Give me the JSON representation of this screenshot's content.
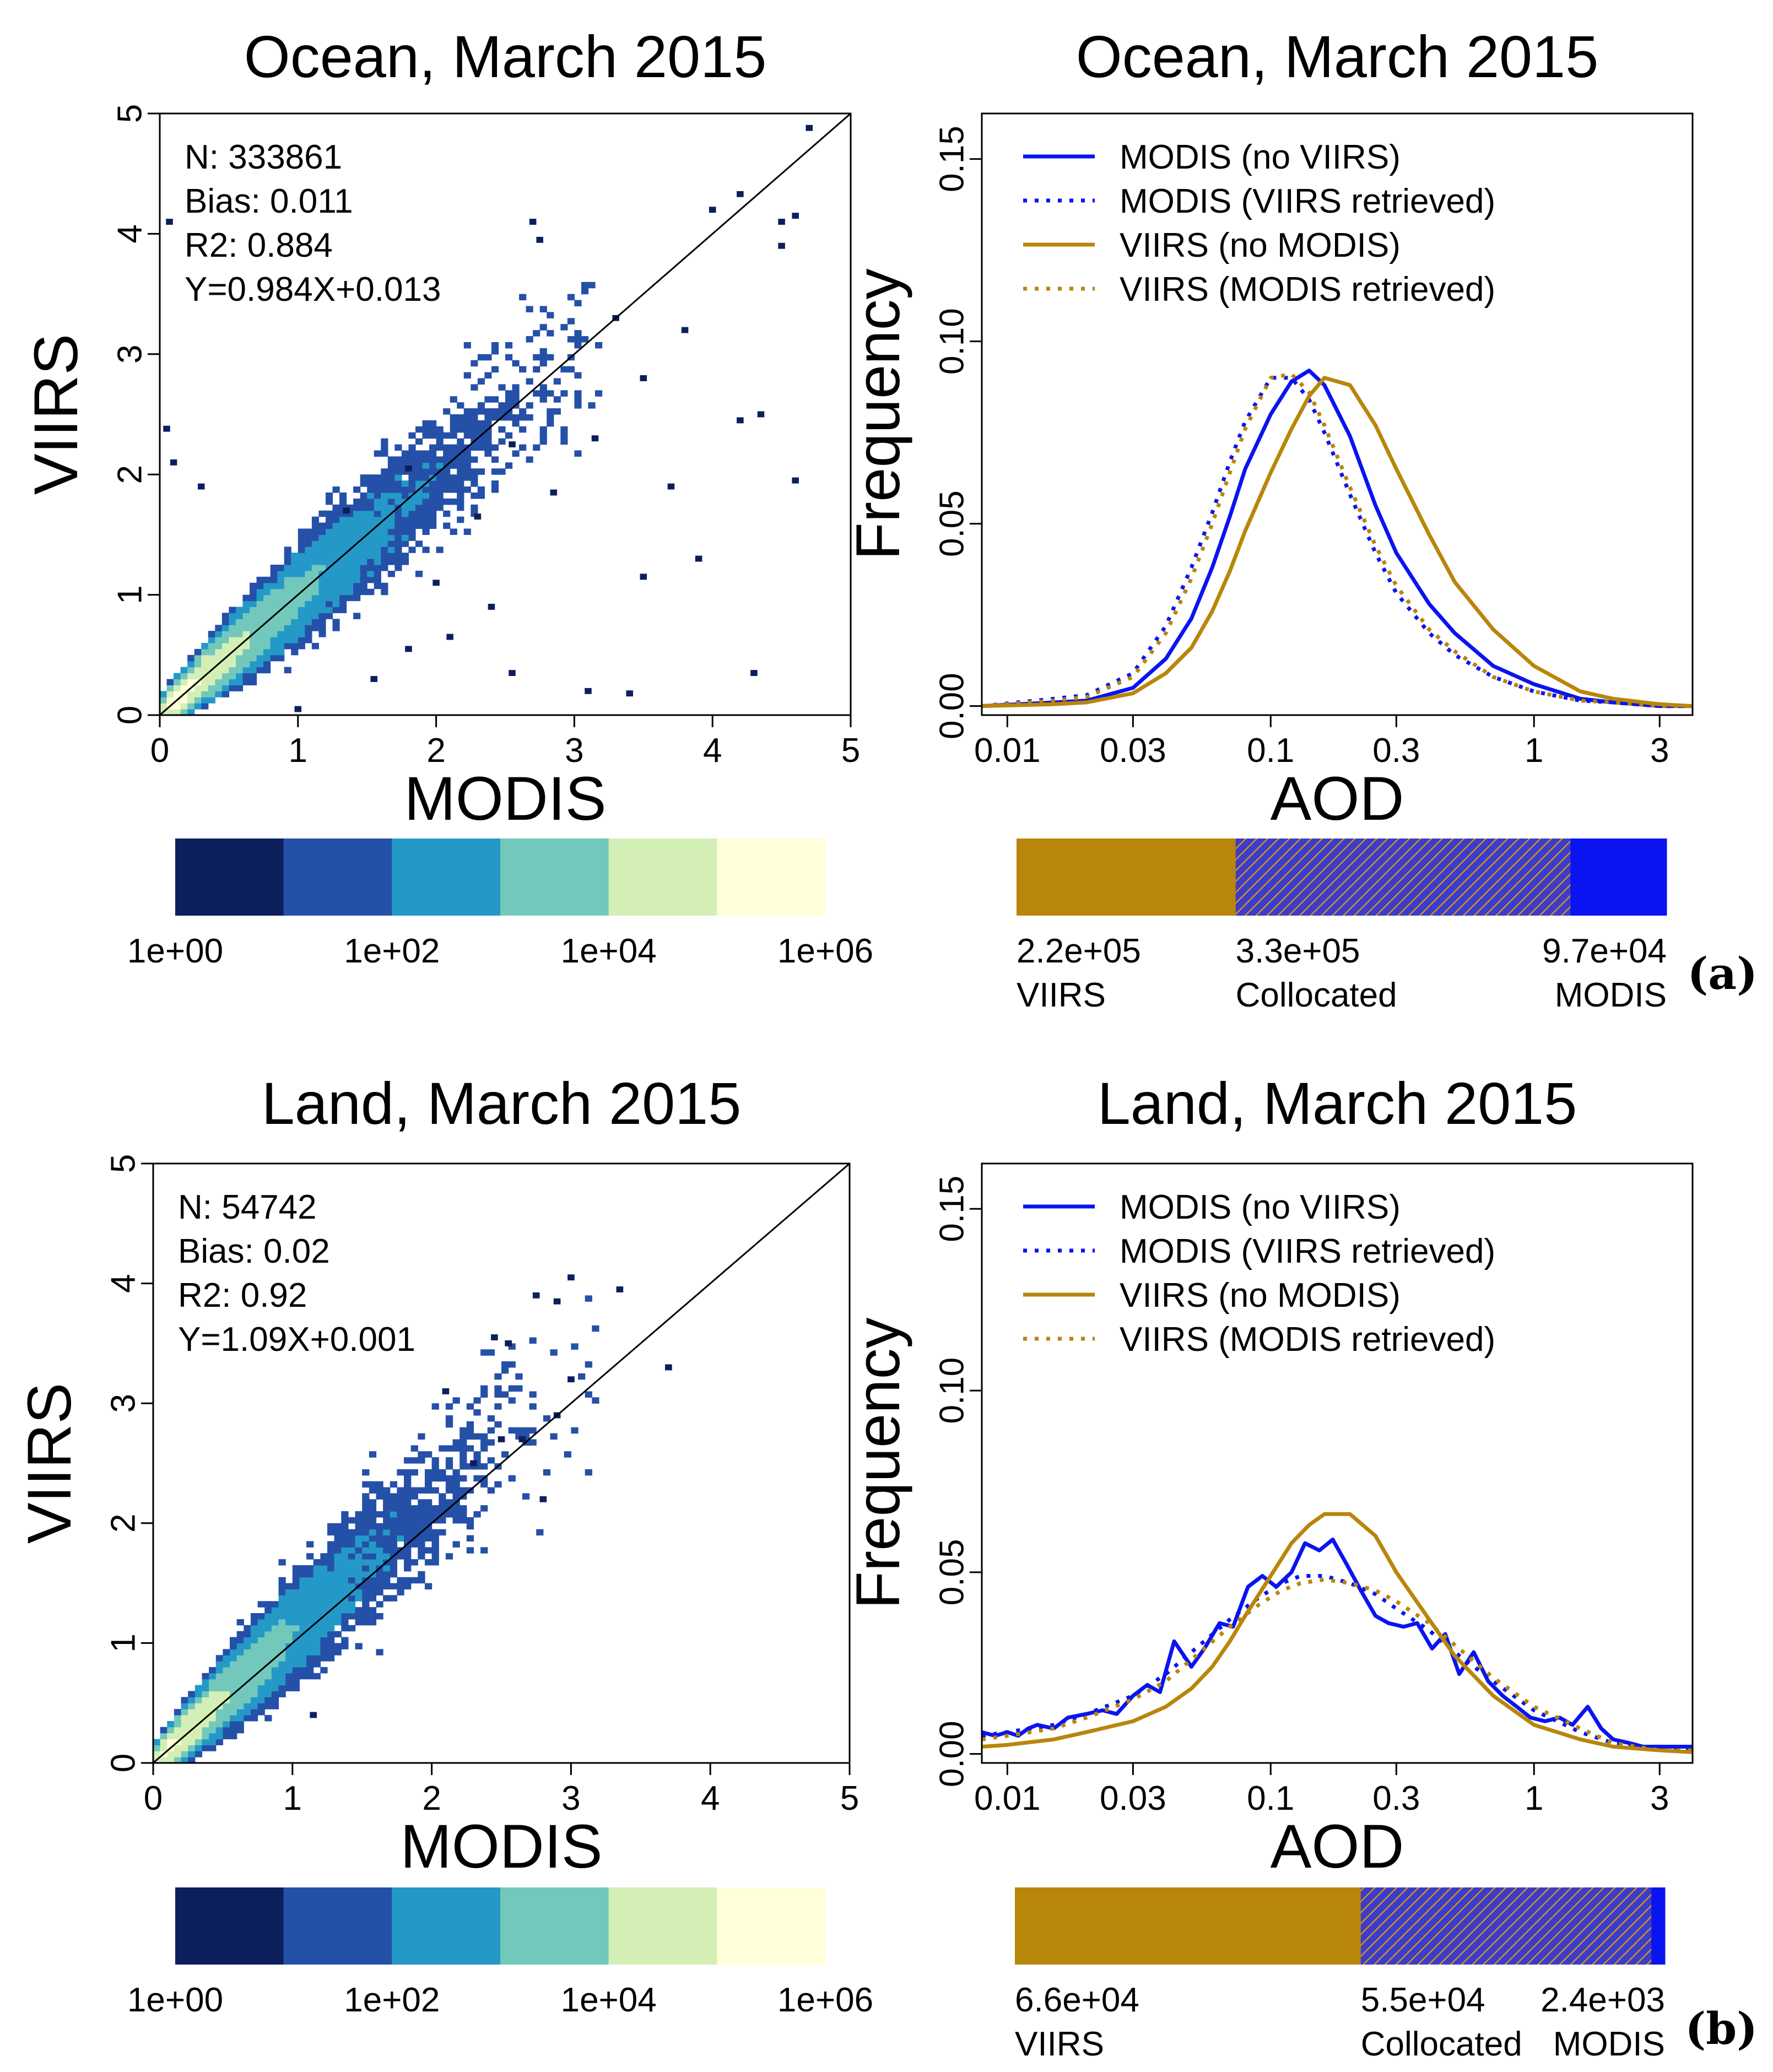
{
  "chart_data": [
    {
      "type": "scatter",
      "panel": "a",
      "title": "Ocean, March 2015",
      "xlabel": "MODIS",
      "ylabel": "VIIRS",
      "xlim": [
        0,
        5
      ],
      "ylim": [
        0,
        5
      ],
      "xticks": [
        "0",
        "1",
        "2",
        "3",
        "4",
        "5"
      ],
      "yticks": [
        "0",
        "1",
        "2",
        "3",
        "4",
        "5"
      ],
      "stats": [
        "N: 333861",
        "Bias: 0.011",
        "R2: 0.884",
        "Y=0.984X+0.013"
      ],
      "fit": {
        "slope": 0.984,
        "intercept": 0.013
      },
      "spread": 0.18,
      "density_scale": {
        "labels": [
          "1e+00",
          "1e+02",
          "1e+04",
          "1e+06"
        ],
        "colors": [
          "#0c1f5c",
          "#2550a8",
          "#2499c8",
          "#73c8bc",
          "#d4efb6",
          "#ffffd9"
        ]
      },
      "outliers": [
        [
          0.05,
          2.38
        ],
        [
          0.1,
          2.1
        ],
        [
          0.07,
          4.1
        ],
        [
          0.3,
          1.9
        ],
        [
          2.7,
          4.1
        ],
        [
          2.75,
          3.95
        ],
        [
          3.3,
          3.3
        ],
        [
          3.5,
          2.8
        ],
        [
          3.7,
          1.9
        ],
        [
          3.5,
          1.15
        ],
        [
          3.4,
          0.18
        ],
        [
          4.2,
          2.45
        ],
        [
          4.3,
          0.35
        ],
        [
          4.5,
          4.1
        ],
        [
          4.6,
          1.95
        ],
        [
          4.5,
          3.9
        ],
        [
          4.7,
          4.88
        ],
        [
          3.8,
          3.2
        ],
        [
          4.2,
          4.33
        ],
        [
          4.0,
          4.2
        ],
        [
          4.35,
          2.5
        ],
        [
          4.6,
          4.15
        ],
        [
          2.1,
          0.65
        ],
        [
          2.3,
          1.65
        ],
        [
          3.9,
          1.3
        ],
        [
          1.55,
          0.3
        ],
        [
          2.55,
          0.35
        ],
        [
          1.0,
          0.05
        ],
        [
          3.1,
          0.2
        ],
        [
          1.8,
          2.05
        ],
        [
          3.15,
          2.3
        ],
        [
          2.85,
          1.85
        ],
        [
          2.55,
          2.25
        ],
        [
          1.35,
          1.7
        ],
        [
          2.0,
          1.1
        ],
        [
          2.4,
          0.9
        ],
        [
          1.8,
          0.55
        ]
      ]
    },
    {
      "type": "line",
      "panel": "a",
      "title": "Ocean, March 2015",
      "xlabel": "AOD",
      "ylabel": "Frequency",
      "x_scale": "log",
      "xlim": [
        0.008,
        4
      ],
      "ylim": [
        0,
        0.16
      ],
      "xticks": [
        "0.01",
        "0.03",
        "0.1",
        "0.3",
        "1",
        "3"
      ],
      "xtick_values": [
        0.01,
        0.03,
        0.1,
        0.3,
        1,
        3
      ],
      "yticks": [
        "0.00",
        "0.05",
        "0.10",
        "0.15"
      ],
      "ytick_values": [
        0,
        0.05,
        0.1,
        0.15
      ],
      "legend_placement": "top-left",
      "series": [
        {
          "name": "MODIS (no VIIRS)",
          "color": "#0a14f0",
          "dash": "solid",
          "x": [
            0.008,
            0.015,
            0.02,
            0.03,
            0.04,
            0.05,
            0.06,
            0.07,
            0.08,
            0.1,
            0.12,
            0.14,
            0.16,
            0.2,
            0.25,
            0.3,
            0.4,
            0.5,
            0.7,
            1,
            1.5,
            2,
            3,
            4
          ],
          "y": [
            0.0,
            0.001,
            0.0015,
            0.005,
            0.013,
            0.024,
            0.038,
            0.052,
            0.065,
            0.08,
            0.089,
            0.092,
            0.088,
            0.074,
            0.055,
            0.042,
            0.028,
            0.02,
            0.011,
            0.006,
            0.002,
            0.001,
            0.0,
            0.0
          ]
        },
        {
          "name": "MODIS (VIIRS retrieved)",
          "color": "#0a14f0",
          "dash": "dotted",
          "x": [
            0.008,
            0.015,
            0.02,
            0.03,
            0.04,
            0.05,
            0.06,
            0.07,
            0.08,
            0.1,
            0.12,
            0.14,
            0.16,
            0.2,
            0.25,
            0.3,
            0.4,
            0.5,
            0.7,
            1,
            1.5,
            2,
            3,
            4
          ],
          "y": [
            0.0,
            0.002,
            0.003,
            0.009,
            0.022,
            0.038,
            0.053,
            0.067,
            0.078,
            0.09,
            0.09,
            0.084,
            0.075,
            0.058,
            0.042,
            0.031,
            0.02,
            0.014,
            0.008,
            0.004,
            0.0015,
            0.001,
            0.0,
            0.0
          ]
        },
        {
          "name": "VIIRS (no MODIS)",
          "color": "#b8860b",
          "dash": "solid",
          "x": [
            0.008,
            0.015,
            0.02,
            0.03,
            0.04,
            0.05,
            0.06,
            0.07,
            0.08,
            0.1,
            0.12,
            0.14,
            0.16,
            0.2,
            0.25,
            0.3,
            0.4,
            0.5,
            0.7,
            1,
            1.5,
            2,
            3,
            4
          ],
          "y": [
            0.0,
            0.0005,
            0.001,
            0.0035,
            0.009,
            0.016,
            0.026,
            0.037,
            0.048,
            0.064,
            0.076,
            0.085,
            0.09,
            0.088,
            0.077,
            0.065,
            0.047,
            0.034,
            0.021,
            0.011,
            0.004,
            0.002,
            0.0005,
            0.0
          ]
        },
        {
          "name": "VIIRS (MODIS retrieved)",
          "color": "#b8860b",
          "dash": "dotted",
          "x": [
            0.008,
            0.015,
            0.02,
            0.03,
            0.04,
            0.05,
            0.06,
            0.07,
            0.08,
            0.1,
            0.12,
            0.14,
            0.16,
            0.2,
            0.25,
            0.3,
            0.4,
            0.5,
            0.7,
            1,
            1.5,
            2,
            3,
            4
          ],
          "y": [
            0.0,
            0.0015,
            0.0025,
            0.008,
            0.02,
            0.035,
            0.05,
            0.064,
            0.076,
            0.09,
            0.091,
            0.086,
            0.077,
            0.06,
            0.044,
            0.033,
            0.021,
            0.015,
            0.008,
            0.004,
            0.0015,
            0.001,
            0.0,
            0.0
          ]
        }
      ],
      "count_bar": {
        "segments": [
          {
            "value": "2.2e+05",
            "label": "VIIRS",
            "fraction": 0.337,
            "color": "#b8860b",
            "hatched": false
          },
          {
            "value": "3.3e+05",
            "label": "Collocated",
            "fraction": 0.515,
            "color": "#4a45b0",
            "hatched": true
          },
          {
            "value": "9.7e+04",
            "label": "MODIS",
            "fraction": 0.148,
            "color": "#0a14f0",
            "hatched": false
          }
        ]
      },
      "panel_label": "(a)"
    },
    {
      "type": "scatter",
      "panel": "b",
      "title": "Land, March 2015",
      "xlabel": "MODIS",
      "ylabel": "VIIRS",
      "xlim": [
        0,
        5
      ],
      "ylim": [
        0,
        5
      ],
      "xticks": [
        "0",
        "1",
        "2",
        "3",
        "4",
        "5"
      ],
      "yticks": [
        "0",
        "1",
        "2",
        "3",
        "4",
        "5"
      ],
      "stats": [
        "N: 54742",
        "Bias: 0.02",
        "R2: 0.92",
        "Y=1.09X+0.001"
      ],
      "fit": {
        "slope": 1.09,
        "intercept": 0.001
      },
      "spread": 0.22,
      "density_scale": {
        "labels": [
          "1e+00",
          "1e+02",
          "1e+04",
          "1e+06"
        ],
        "colors": [
          "#0c1f5c",
          "#2550a8",
          "#2499c8",
          "#73c8bc",
          "#d4efb6",
          "#ffffd9"
        ]
      },
      "outliers": [
        [
          2.75,
          3.9
        ],
        [
          2.9,
          3.85
        ],
        [
          3.0,
          4.05
        ],
        [
          3.35,
          3.95
        ],
        [
          3.7,
          3.3
        ],
        [
          2.8,
          2.2
        ],
        [
          3.0,
          3.2
        ],
        [
          2.55,
          3.5
        ],
        [
          2.5,
          2.7
        ],
        [
          1.15,
          0.4
        ],
        [
          2.1,
          3.1
        ],
        [
          2.45,
          3.55
        ],
        [
          2.9,
          2.9
        ],
        [
          2.3,
          2.5
        ],
        [
          2.65,
          2.7
        ]
      ]
    },
    {
      "type": "line",
      "panel": "b",
      "title": "Land, March 2015",
      "xlabel": "AOD",
      "ylabel": "Frequency",
      "x_scale": "log",
      "xlim": [
        0.008,
        4
      ],
      "ylim": [
        0,
        0.16
      ],
      "xticks": [
        "0.01",
        "0.03",
        "0.1",
        "0.3",
        "1",
        "3"
      ],
      "xtick_values": [
        0.01,
        0.03,
        0.1,
        0.3,
        1,
        3
      ],
      "yticks": [
        "0.00",
        "0.05",
        "0.10",
        "0.15"
      ],
      "ytick_values": [
        0,
        0.05,
        0.1,
        0.15
      ],
      "legend_placement": "top-left",
      "series": [
        {
          "name": "MODIS (no VIIRS)",
          "color": "#0a14f0",
          "dash": "solid",
          "x": [
            0.008,
            0.009,
            0.01,
            0.011,
            0.012,
            0.013,
            0.015,
            0.017,
            0.02,
            0.023,
            0.026,
            0.03,
            0.034,
            0.038,
            0.043,
            0.05,
            0.056,
            0.064,
            0.072,
            0.082,
            0.093,
            0.105,
            0.12,
            0.135,
            0.153,
            0.172,
            0.195,
            0.22,
            0.25,
            0.28,
            0.32,
            0.36,
            0.41,
            0.46,
            0.52,
            0.59,
            0.67,
            0.76,
            0.86,
            0.97,
            1.1,
            1.25,
            1.4,
            1.6,
            1.8,
            2.0,
            2.3,
            2.6,
            3.0,
            3.4,
            4.0
          ],
          "y": [
            0.006,
            0.005,
            0.006,
            0.005,
            0.007,
            0.008,
            0.007,
            0.01,
            0.011,
            0.012,
            0.011,
            0.016,
            0.019,
            0.017,
            0.031,
            0.024,
            0.029,
            0.036,
            0.035,
            0.046,
            0.049,
            0.046,
            0.05,
            0.058,
            0.056,
            0.059,
            0.052,
            0.045,
            0.038,
            0.036,
            0.035,
            0.036,
            0.029,
            0.033,
            0.022,
            0.028,
            0.02,
            0.016,
            0.013,
            0.01,
            0.009,
            0.01,
            0.008,
            0.013,
            0.007,
            0.004,
            0.003,
            0.002,
            0.002,
            0.002,
            0.002
          ]
        },
        {
          "name": "MODIS (VIIRS retrieved)",
          "color": "#0a14f0",
          "dash": "dotted",
          "x": [
            0.008,
            0.01,
            0.015,
            0.02,
            0.03,
            0.04,
            0.05,
            0.07,
            0.09,
            0.11,
            0.13,
            0.16,
            0.2,
            0.25,
            0.3,
            0.4,
            0.5,
            0.7,
            1,
            1.5,
            2,
            3,
            4
          ],
          "y": [
            0.005,
            0.006,
            0.008,
            0.011,
            0.016,
            0.022,
            0.028,
            0.037,
            0.043,
            0.047,
            0.049,
            0.049,
            0.047,
            0.044,
            0.04,
            0.034,
            0.028,
            0.02,
            0.012,
            0.006,
            0.003,
            0.001,
            0.001
          ]
        },
        {
          "name": "VIIRS (no MODIS)",
          "color": "#b8860b",
          "dash": "solid",
          "x": [
            0.008,
            0.01,
            0.015,
            0.02,
            0.03,
            0.04,
            0.05,
            0.06,
            0.07,
            0.08,
            0.1,
            0.12,
            0.14,
            0.16,
            0.18,
            0.2,
            0.25,
            0.3,
            0.4,
            0.5,
            0.7,
            1,
            1.5,
            2,
            3,
            4
          ],
          "y": [
            0.002,
            0.0025,
            0.004,
            0.006,
            0.009,
            0.013,
            0.018,
            0.024,
            0.031,
            0.038,
            0.049,
            0.058,
            0.063,
            0.066,
            0.066,
            0.066,
            0.06,
            0.05,
            0.037,
            0.027,
            0.016,
            0.008,
            0.004,
            0.002,
            0.001,
            0.0005
          ]
        },
        {
          "name": "VIIRS (MODIS retrieved)",
          "color": "#b8860b",
          "dash": "dotted",
          "x": [
            0.008,
            0.01,
            0.015,
            0.02,
            0.03,
            0.04,
            0.05,
            0.07,
            0.09,
            0.11,
            0.13,
            0.16,
            0.2,
            0.25,
            0.3,
            0.4,
            0.5,
            0.7,
            1,
            1.5,
            2,
            3,
            4
          ],
          "y": [
            0.004,
            0.005,
            0.007,
            0.01,
            0.015,
            0.02,
            0.026,
            0.035,
            0.041,
            0.045,
            0.047,
            0.048,
            0.047,
            0.045,
            0.042,
            0.036,
            0.03,
            0.021,
            0.013,
            0.007,
            0.003,
            0.001,
            0.001
          ]
        }
      ],
      "count_bar": {
        "segments": [
          {
            "value": "6.6e+04",
            "label": "VIIRS",
            "fraction": 0.532,
            "color": "#b8860b",
            "hatched": false
          },
          {
            "value": "5.5e+04",
            "label": "Collocated",
            "fraction": 0.447,
            "color": "#4a45b0",
            "hatched": true
          },
          {
            "value": "2.4e+03",
            "label": "MODIS",
            "fraction": 0.021,
            "color": "#0a14f0",
            "hatched": false
          }
        ]
      },
      "panel_label": "(b)"
    }
  ]
}
